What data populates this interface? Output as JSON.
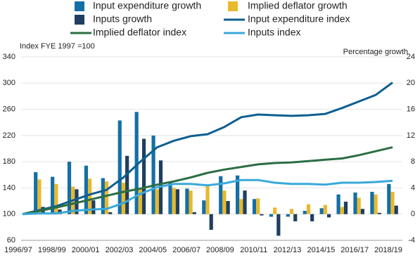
{
  "chart_data": {
    "type": "combo",
    "y_label": "Index FYE 1997 =100",
    "y2_label": "Percentage growth",
    "categories": [
      "1996/97",
      null,
      "1998/99",
      null,
      "2000/01",
      null,
      "2002/03",
      null,
      "2004/05",
      null,
      "2006/07",
      null,
      "2008/09",
      null,
      "2010/11",
      null,
      "2012/13",
      null,
      "2014/15",
      null,
      "2016/17",
      null,
      "2018/19"
    ],
    "ylim": [
      60,
      340
    ],
    "yticks": [
      60,
      100,
      140,
      180,
      220,
      260,
      300,
      340
    ],
    "y2lim": [
      -4,
      24
    ],
    "y2ticks": [
      -4,
      0,
      4,
      8,
      12,
      16,
      20,
      24
    ],
    "grid": true,
    "legend": "top",
    "series": [
      {
        "name": "Input expenditure growth",
        "type": "bar",
        "axis": "y2",
        "color": "#146fa6",
        "values": [
          null,
          6.4,
          5.7,
          8.0,
          7.4,
          5.5,
          14.3,
          15.6,
          12.0,
          4.8,
          3.9,
          2.1,
          5.8,
          5.9,
          2.3,
          -0.4,
          -0.4,
          0.5,
          0.9,
          3.0,
          3.3,
          3.4,
          4.6
        ]
      },
      {
        "name": "Implied deflator growth",
        "type": "bar",
        "axis": "y2",
        "color": "#e8b92c",
        "values": [
          null,
          5.3,
          4.6,
          4.2,
          5.4,
          5.0,
          4.8,
          3.8,
          3.8,
          4.0,
          3.6,
          4.5,
          3.6,
          2.3,
          2.4,
          1.0,
          0.8,
          1.5,
          1.4,
          1.1,
          2.5,
          3.0,
          3.4
        ]
      },
      {
        "name": "Inputs growth",
        "type": "bar",
        "axis": "y2",
        "color": "#203f60",
        "values": [
          null,
          1.1,
          0.7,
          3.8,
          2.1,
          0.3,
          8.9,
          11.5,
          8.2,
          3.8,
          0.3,
          -2.4,
          2.0,
          3.6,
          -0.2,
          -3.3,
          -1.1,
          -1.1,
          -0.5,
          1.9,
          0.8,
          0.2,
          1.3
        ]
      },
      {
        "name": "Input expenditure index",
        "type": "line",
        "color": "#0e5f90",
        "values": [
          100,
          106,
          112,
          121,
          130,
          137,
          156,
          180,
          202,
          212,
          219,
          222,
          233,
          248,
          252,
          251,
          250,
          251,
          253,
          262,
          272,
          282,
          301
        ]
      },
      {
        "name": "Implied deflator index",
        "type": "line",
        "color": "#2b6e44",
        "values": [
          100,
          105,
          110,
          116,
          122,
          128,
          134,
          139,
          145,
          150,
          156,
          163,
          168,
          172,
          176,
          178,
          179,
          181,
          183,
          185,
          190,
          196,
          202
        ]
      },
      {
        "name": "Inputs index",
        "type": "line",
        "color": "#3aa8da",
        "values": [
          100,
          101,
          101,
          105,
          107,
          108,
          117,
          131,
          141,
          146,
          146,
          144,
          147,
          152,
          152,
          148,
          146,
          146,
          145,
          148,
          148,
          149,
          151
        ]
      }
    ]
  }
}
